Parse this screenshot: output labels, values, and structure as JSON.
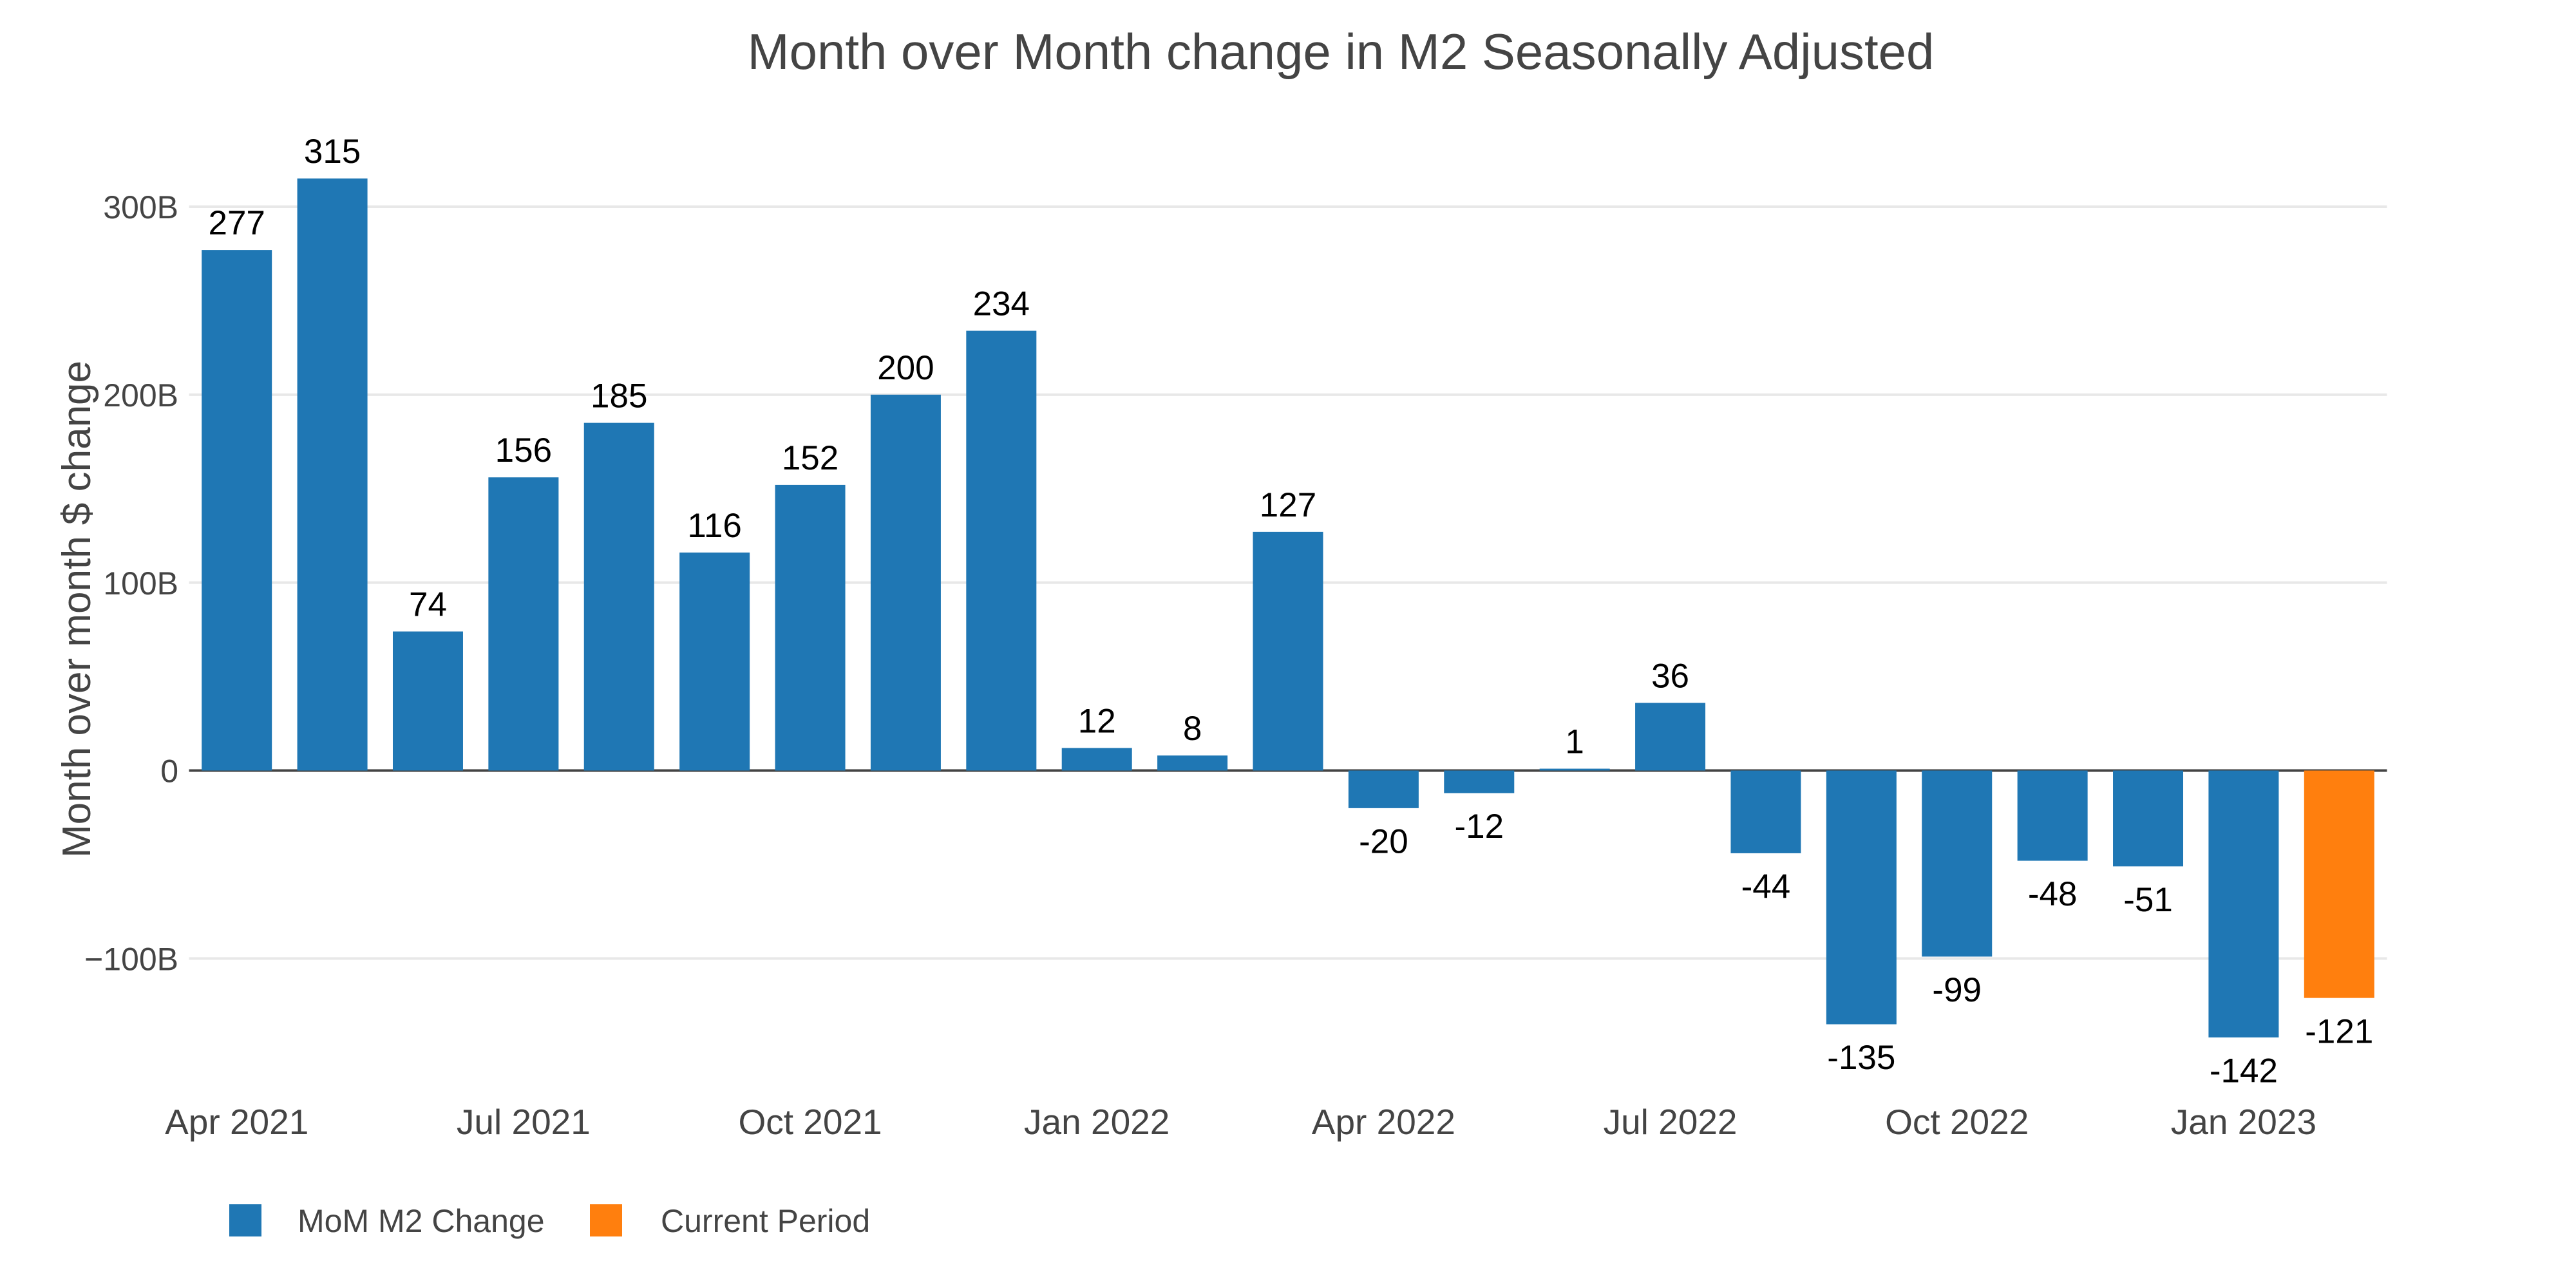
{
  "chart_data": {
    "type": "bar",
    "title": "Month over Month change in M2 Seasonally Adjusted",
    "xlabel": "",
    "ylabel": "Month over month $ change",
    "values": [
      277,
      315,
      74,
      156,
      185,
      116,
      152,
      200,
      234,
      12,
      8,
      127,
      -20,
      -12,
      1,
      36,
      -44,
      -135,
      -99,
      -48,
      -51,
      -142,
      -121
    ],
    "bar_labels": [
      "277",
      "315",
      "74",
      "156",
      "185",
      "116",
      "152",
      "200",
      "234",
      "12",
      "8",
      "127",
      "-20",
      "-12",
      "1",
      "36",
      "-44",
      "-135",
      "-99",
      "-48",
      "-51",
      "-142",
      "-121"
    ],
    "current_period_index": 22,
    "x_tick_labels": [
      "Apr 2021",
      "Jul 2021",
      "Oct 2021",
      "Jan 2022",
      "Apr 2022",
      "Jul 2022",
      "Oct 2022",
      "Jan 2023"
    ],
    "x_tick_bar_indices": [
      0,
      3,
      6,
      9,
      12,
      15,
      18,
      21
    ],
    "y_tick_labels": [
      "300B",
      "200B",
      "100B",
      "0",
      "−100B"
    ],
    "y_tick_values": [
      300,
      200,
      100,
      0,
      -100
    ],
    "ylim": [
      -160,
      340
    ],
    "grid": true,
    "legend_position": "bottom-left",
    "legend": [
      {
        "label": "MoM M2 Change",
        "color": "#1f77b4"
      },
      {
        "label": "Current Period",
        "color": "#ff7f0e"
      }
    ],
    "colors": {
      "bar": "#1f77b4",
      "current_period_bar": "#ff7f0e",
      "axis_text": "#444444",
      "title_text": "#444444",
      "bar_label_text": "#000000",
      "gridline": "#e8e8e8",
      "zero_line": "#444444",
      "background": "#ffffff"
    }
  }
}
